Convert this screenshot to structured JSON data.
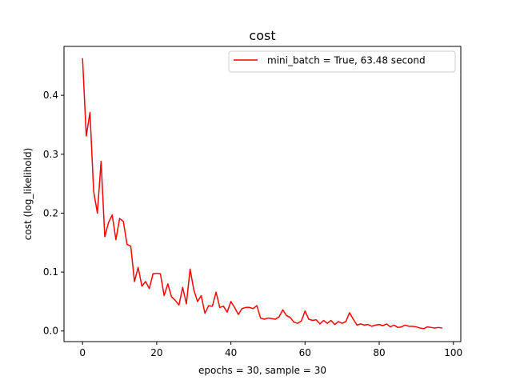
{
  "chart_data": {
    "type": "line",
    "title": "cost",
    "xlabel": "epochs = 30, sample = 30",
    "ylabel": "cost (log_likelihold)",
    "xlim": [
      -5,
      102
    ],
    "ylim": [
      -0.018,
      0.483
    ],
    "xticks": [
      0,
      20,
      40,
      60,
      80,
      100
    ],
    "yticks": [
      0.0,
      0.1,
      0.2,
      0.3,
      0.4
    ],
    "xtick_labels": [
      "0",
      "20",
      "40",
      "60",
      "80",
      "100"
    ],
    "ytick_labels": [
      "0.0",
      "0.1",
      "0.2",
      "0.3",
      "0.4"
    ],
    "grid": false,
    "legend_position": "top-right",
    "series": [
      {
        "name": "mini_batch = True, 63.48 second",
        "color": "#ff0000",
        "y": [
          0.463,
          0.331,
          0.371,
          0.237,
          0.2,
          0.288,
          0.16,
          0.184,
          0.197,
          0.155,
          0.191,
          0.186,
          0.147,
          0.144,
          0.084,
          0.108,
          0.076,
          0.084,
          0.072,
          0.097,
          0.098,
          0.097,
          0.06,
          0.08,
          0.058,
          0.052,
          0.044,
          0.074,
          0.046,
          0.105,
          0.07,
          0.05,
          0.06,
          0.03,
          0.043,
          0.042,
          0.066,
          0.04,
          0.042,
          0.032,
          0.05,
          0.04,
          0.028,
          0.038,
          0.04,
          0.04,
          0.038,
          0.043,
          0.022,
          0.02,
          0.022,
          0.021,
          0.02,
          0.024,
          0.036,
          0.026,
          0.023,
          0.015,
          0.013,
          0.017,
          0.034,
          0.02,
          0.018,
          0.019,
          0.012,
          0.018,
          0.013,
          0.018,
          0.011,
          0.016,
          0.013,
          0.016,
          0.031,
          0.02,
          0.01,
          0.012,
          0.01,
          0.011,
          0.008,
          0.01,
          0.011,
          0.009,
          0.012,
          0.007,
          0.01,
          0.006,
          0.007,
          0.01,
          0.008,
          0.008,
          0.007,
          0.005,
          0.004,
          0.007,
          0.006,
          0.005,
          0.006,
          0.005
        ]
      }
    ]
  }
}
